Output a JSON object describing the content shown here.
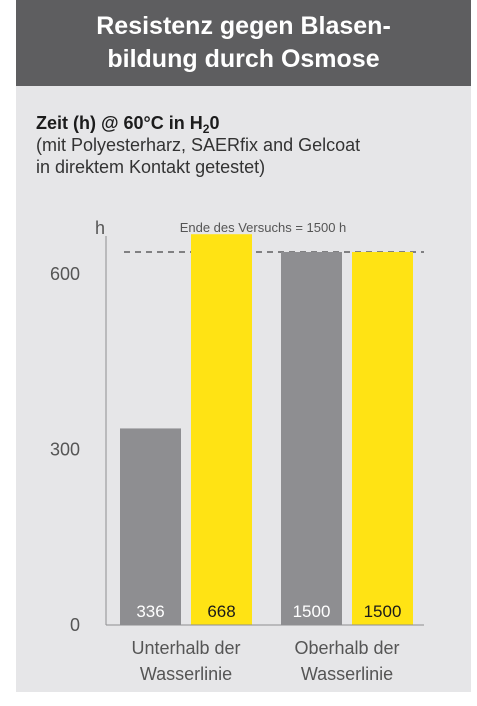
{
  "header": {
    "line1": "Resistenz gegen Blasen-",
    "line2": "bildung durch Osmose"
  },
  "subtitle": {
    "bold_prefix": "Zeit (h) @ 60°C in H",
    "bold_sub": "2",
    "bold_suffix": "0",
    "note_line1": "(mit Polyesterharz, SAERfix and Gelcoat",
    "note_line2": "in direktem Kontakt getestet)"
  },
  "chart_data": {
    "type": "bar",
    "ylabel": "h",
    "ylim": [
      0,
      700
    ],
    "yticks": [
      0,
      300,
      600
    ],
    "categories": [
      {
        "line1": "Unterhalb der",
        "line2": "Wasserlinie"
      },
      {
        "line1": "Oberhalb der",
        "line2": "Wasserlinie"
      }
    ],
    "series": [
      {
        "color": "#8e8e91",
        "values": [
          336,
          1500
        ],
        "value_labels": [
          "336",
          "1500"
        ]
      },
      {
        "color": "#ffe314",
        "values": [
          668,
          1500
        ],
        "value_labels": [
          "668",
          "1500"
        ]
      }
    ],
    "reference_line": {
      "value": 1500,
      "label": "Ende des Versuchs = 1500 h",
      "style": "dashed"
    },
    "grid": false,
    "legend": "none"
  }
}
